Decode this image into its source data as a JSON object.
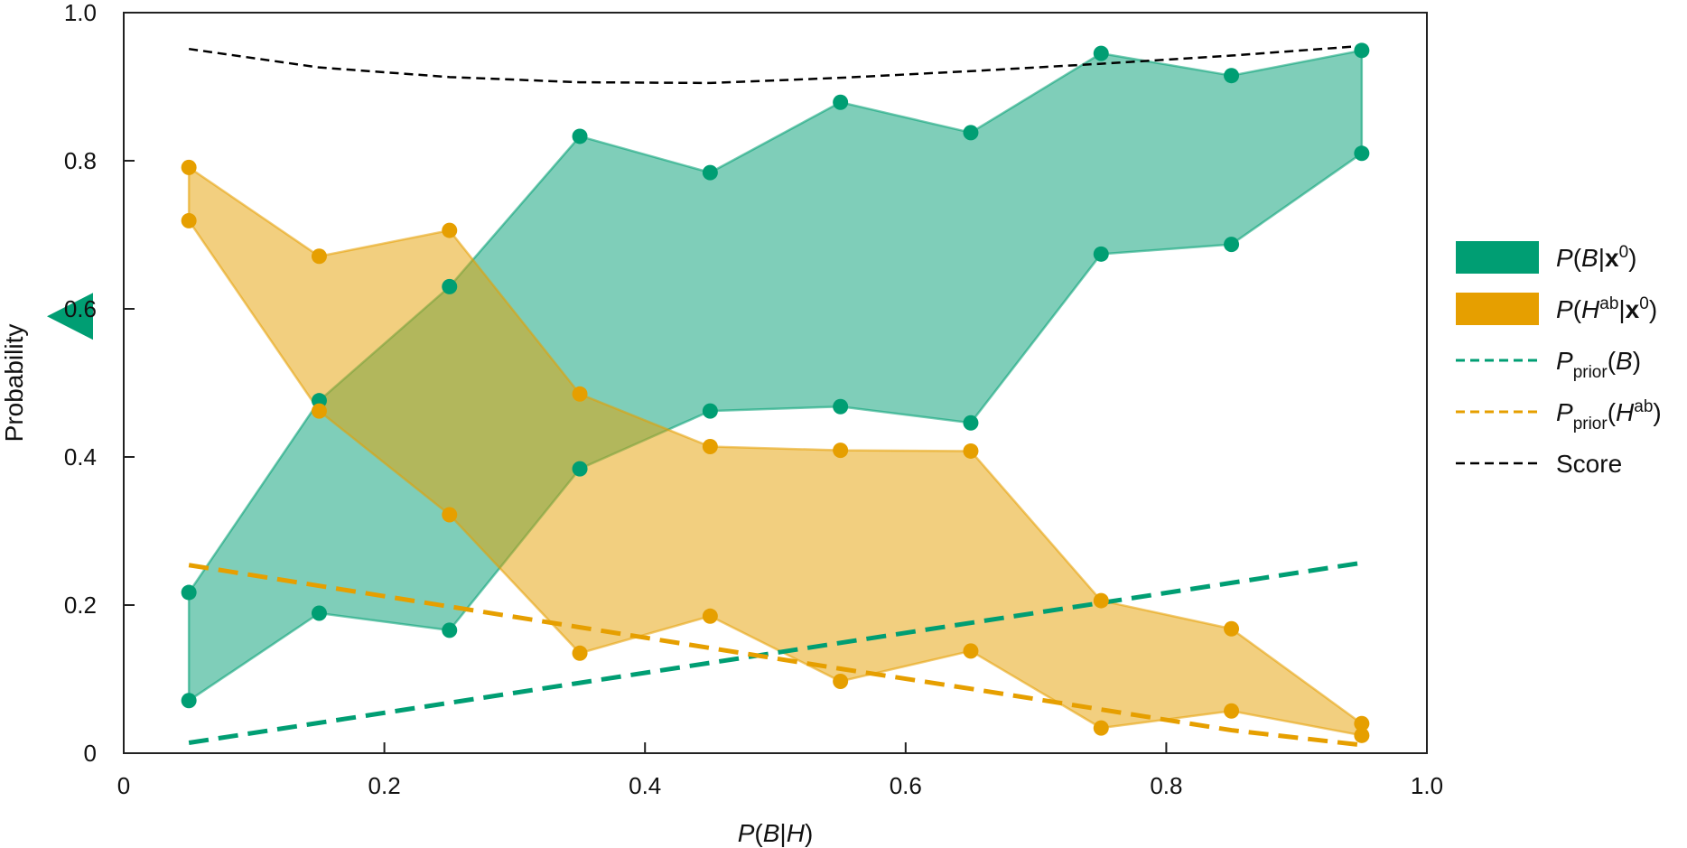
{
  "chart_data": {
    "type": "area",
    "xlabel": "P(B|H)",
    "ylabel": "Probability",
    "xlim": [
      0,
      1.0
    ],
    "ylim": [
      0,
      1.0
    ],
    "x_ticks": [
      "0",
      "0.2",
      "0.4",
      "0.6",
      "0.8",
      "1.0"
    ],
    "y_ticks": [
      "0",
      "0.2",
      "0.4",
      "0.6",
      "0.8",
      "1.0"
    ],
    "grid": false,
    "legend_position": "right",
    "x": [
      0.05,
      0.15,
      0.25,
      0.35,
      0.45,
      0.55,
      0.65,
      0.75,
      0.85,
      0.95
    ],
    "series": [
      {
        "name": "P(B|x0)",
        "kind": "band",
        "color": "#009E73",
        "upper": [
          0.217,
          0.476,
          0.63,
          0.833,
          0.784,
          0.879,
          0.838,
          0.945,
          0.915,
          0.949
        ],
        "lower": [
          0.071,
          0.189,
          0.166,
          0.384,
          0.462,
          0.468,
          0.446,
          0.674,
          0.687,
          0.81
        ]
      },
      {
        "name": "P(Hab|x0)",
        "kind": "band",
        "color": "#E69F00",
        "upper": [
          0.791,
          0.671,
          0.706,
          0.485,
          0.414,
          0.409,
          0.408,
          0.206,
          0.168,
          0.04
        ],
        "lower": [
          0.719,
          0.462,
          0.322,
          0.135,
          0.185,
          0.097,
          0.138,
          0.034,
          0.057,
          0.024
        ]
      },
      {
        "name": "Pprior(B)",
        "kind": "dashed-line",
        "color": "#009E73",
        "values": [
          0.014,
          0.041,
          0.068,
          0.095,
          0.122,
          0.149,
          0.176,
          0.203,
          0.23,
          0.257
        ]
      },
      {
        "name": "Pprior(Hab)",
        "kind": "dashed-line",
        "color": "#E69F00",
        "values": [
          0.254,
          0.226,
          0.198,
          0.17,
          0.142,
          0.114,
          0.087,
          0.059,
          0.031,
          0.011
        ]
      },
      {
        "name": "Score",
        "kind": "dashed-line",
        "color": "#000000",
        "values": [
          0.951,
          0.926,
          0.913,
          0.906,
          0.905,
          0.912,
          0.921,
          0.931,
          0.942,
          0.955
        ]
      }
    ],
    "marker": {
      "shape": "left-triangle",
      "y": 0.59,
      "color": "#009E73"
    },
    "legend": [
      {
        "kind": "patch",
        "color": "#009E73",
        "pre": "P(",
        "italic": "B",
        "mid": "|",
        "bold": "x",
        "sup": "0",
        "post": ")"
      },
      {
        "kind": "patch",
        "color": "#E69F00",
        "pre": "P(",
        "italic": "H",
        "sup1": "ab",
        "mid": "|",
        "bold": "x",
        "sup": "0",
        "post": ")"
      },
      {
        "kind": "dash",
        "color": "#009E73",
        "pre": "P",
        "sub": "prior",
        "post": "(B)"
      },
      {
        "kind": "dash",
        "color": "#E69F00",
        "pre": "P",
        "sub": "prior",
        "post2pre": "(H",
        "sup1": "ab",
        "post": ")"
      },
      {
        "kind": "dash",
        "color": "#000000",
        "text": "Score"
      }
    ]
  }
}
